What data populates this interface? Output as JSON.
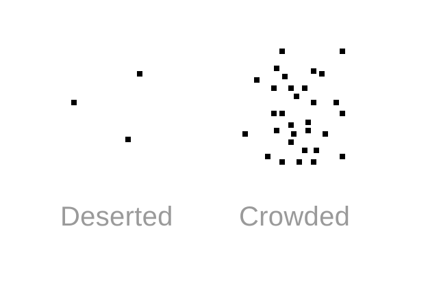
{
  "panels": [
    {
      "id": "deserted",
      "label": "Deserted",
      "dot_count": 3
    },
    {
      "id": "crowded",
      "label": "Crowded",
      "dot_count": 32
    }
  ],
  "colors": {
    "dot": "#000000",
    "label": "#9a9a9a",
    "background": "#ffffff"
  }
}
